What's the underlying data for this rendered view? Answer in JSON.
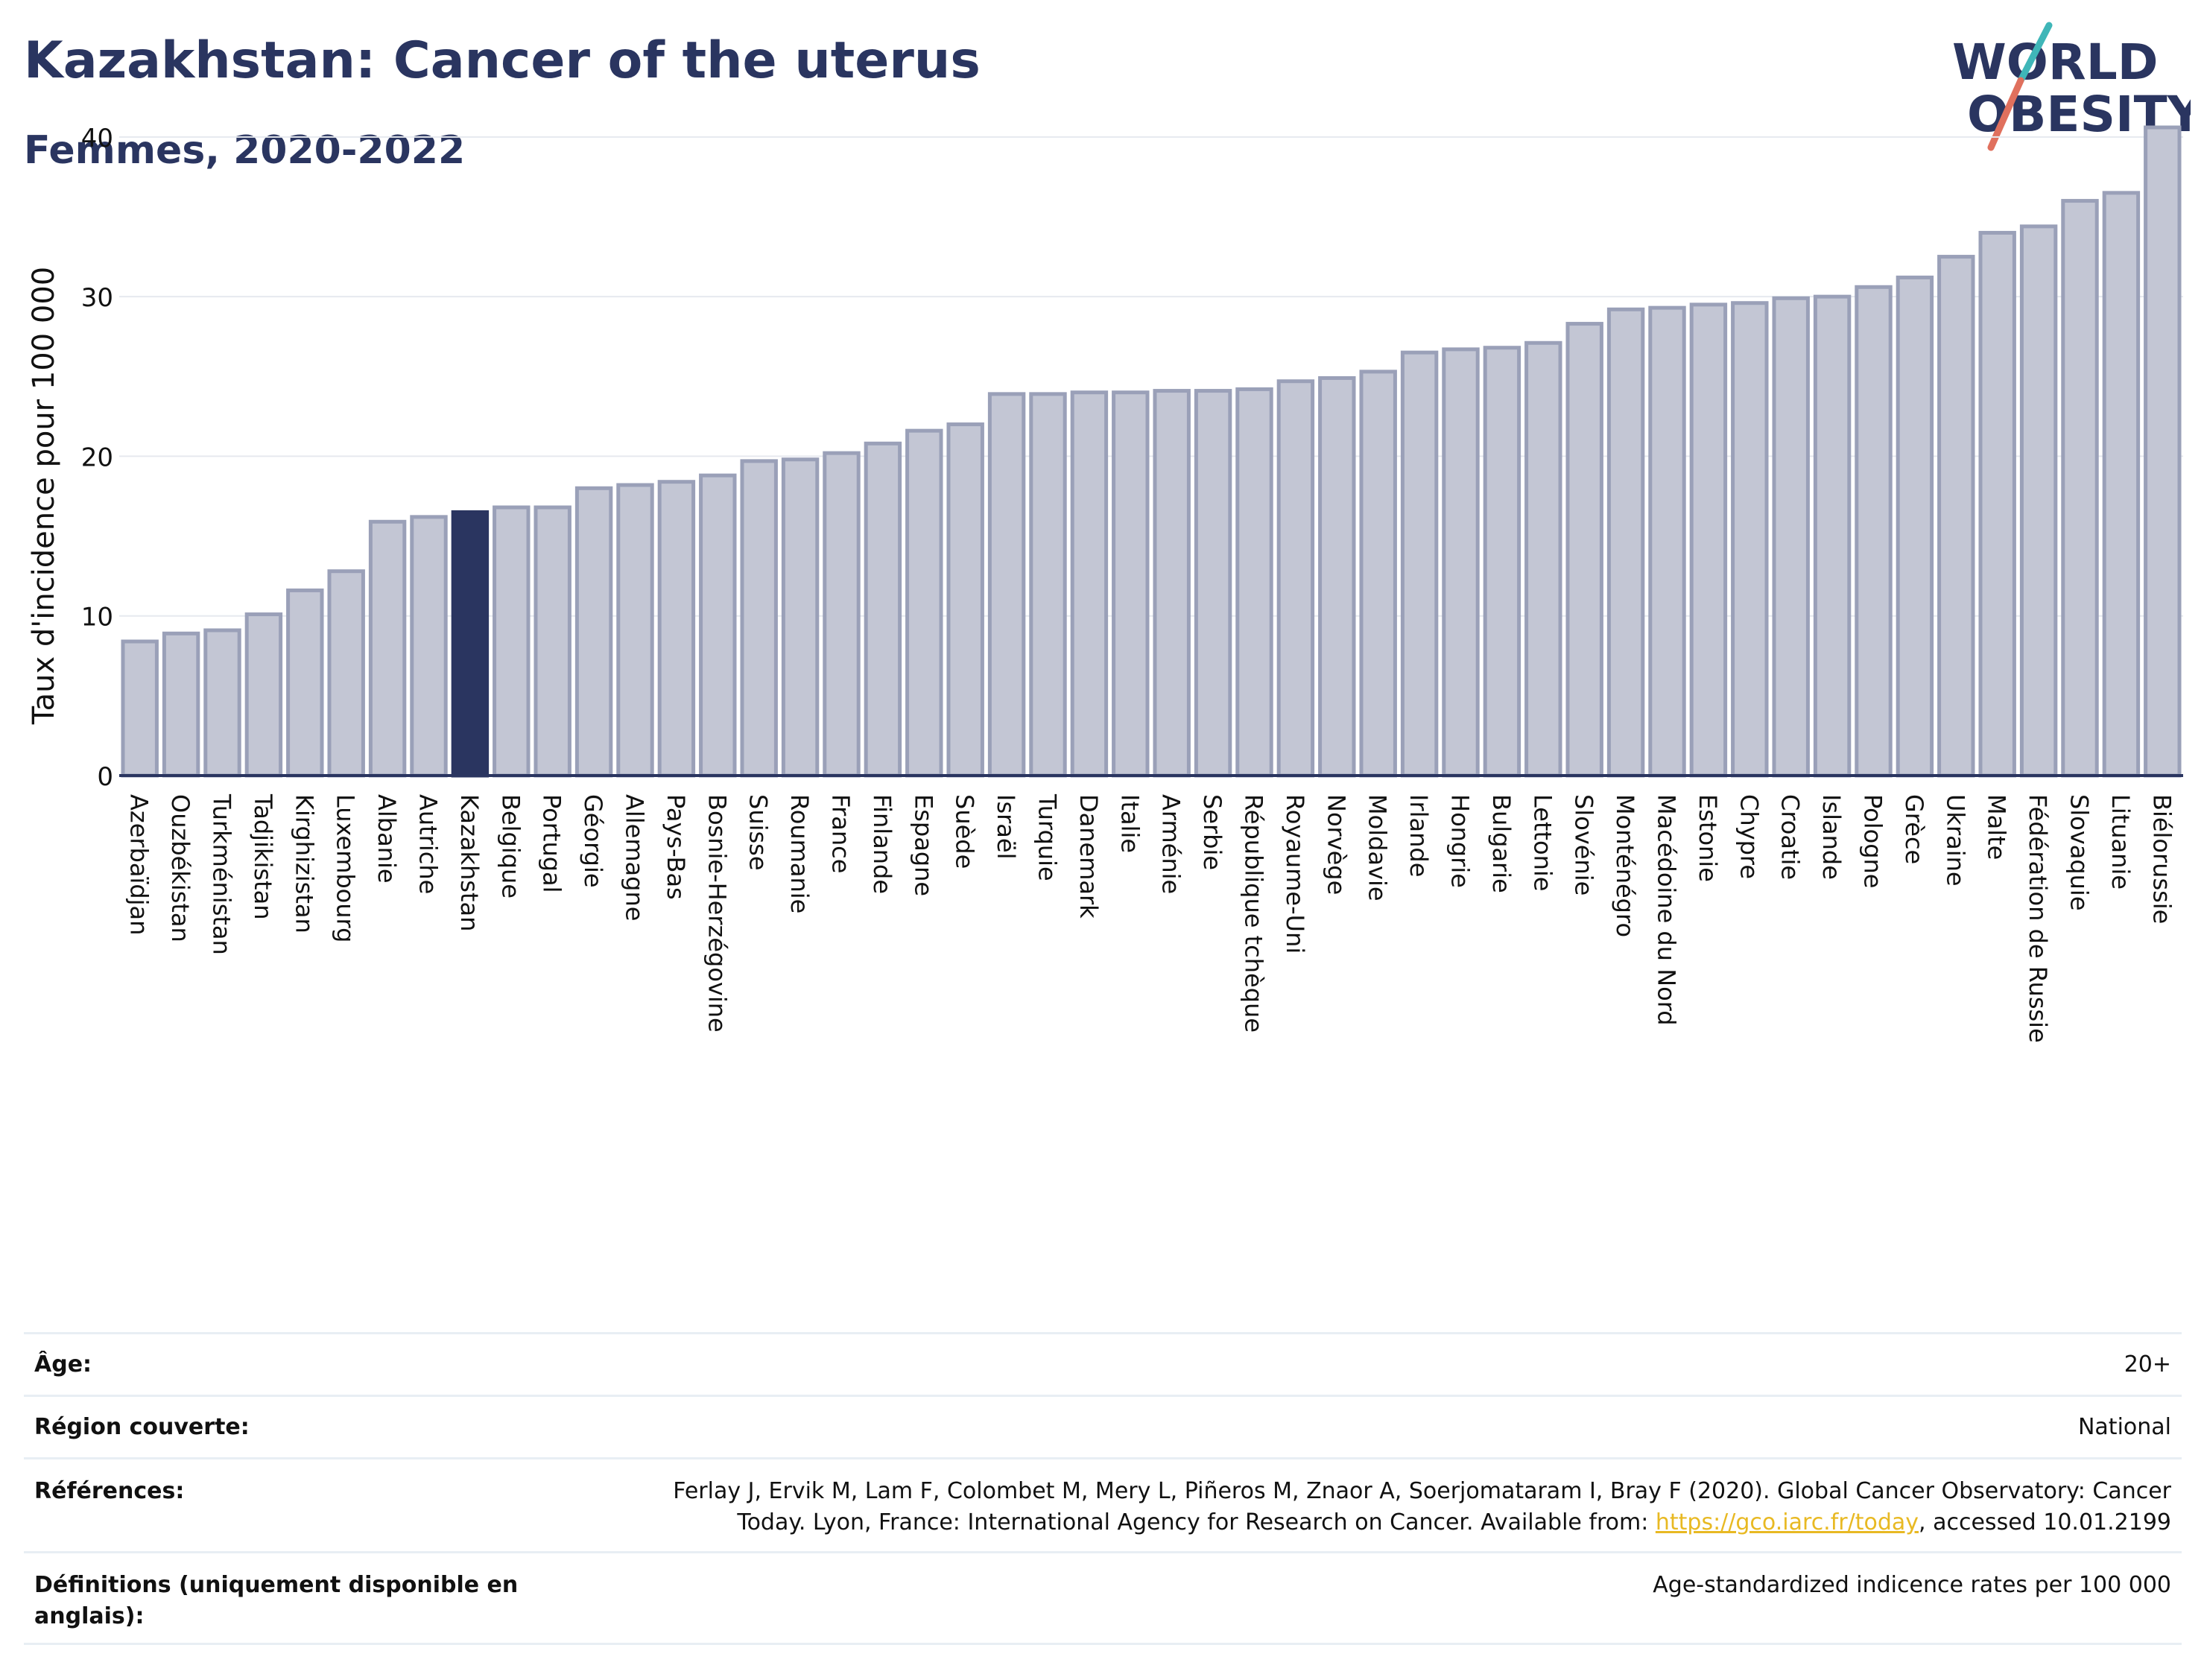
{
  "header": {
    "title": "Kazakhstan: Cancer of the uterus",
    "subtitle": "Femmes, 2020-2022"
  },
  "logo": {
    "line1": "WORLD",
    "line2": "OBESITY"
  },
  "colors": {
    "bar": "#c3c6d4",
    "bar_stroke": "#9aa0b8",
    "highlight": "#2a3560",
    "grid": "#e6e9ef",
    "axis": "#2a3560"
  },
  "chart_data": {
    "type": "bar",
    "ylabel": "Taux d'incidence pour 100 000",
    "ylim": [
      0,
      42
    ],
    "yticks": [
      0,
      10,
      20,
      30,
      40
    ],
    "highlight": "Kazakhstan",
    "grid": true,
    "categories": [
      "Azerbaïdjan",
      "Ouzbékistan",
      "Turkménistan",
      "Tadjikistan",
      "Kirghizistan",
      "Luxembourg",
      "Albanie",
      "Autriche",
      "Kazakhstan",
      "Belgique",
      "Portugal",
      "Géorgie",
      "Allemagne",
      "Pays-Bas",
      "Bosnie-Herzégovine",
      "Suisse",
      "Roumanie",
      "France",
      "Finlande",
      "Espagne",
      "Suède",
      "Israël",
      "Turquie",
      "Danemark",
      "Italie",
      "Arménie",
      "Serbie",
      "République tchèque",
      "Royaume-Uni",
      "Norvège",
      "Moldavie",
      "Irlande",
      "Hongrie",
      "Bulgarie",
      "Lettonie",
      "Slovénie",
      "Monténégro",
      "Macédoine du Nord",
      "Estonie",
      "Chypre",
      "Croatie",
      "Islande",
      "Pologne",
      "Grèce",
      "Ukraine",
      "Malte",
      "Fédération de Russie",
      "Slovaquie",
      "Lituanie",
      "Biélorussie"
    ],
    "values": [
      8.4,
      8.9,
      9.1,
      10.1,
      11.6,
      12.8,
      15.9,
      16.2,
      16.5,
      16.8,
      16.8,
      18.0,
      18.2,
      18.4,
      18.8,
      19.7,
      19.8,
      20.2,
      20.8,
      21.6,
      22.0,
      23.9,
      23.9,
      24.0,
      24.0,
      24.1,
      24.1,
      24.2,
      24.7,
      24.9,
      25.3,
      26.5,
      26.7,
      26.8,
      27.1,
      28.3,
      29.2,
      29.3,
      29.5,
      29.6,
      29.9,
      30.0,
      30.6,
      31.2,
      32.5,
      34.0,
      34.4,
      36.0,
      36.5,
      40.6
    ]
  },
  "info": {
    "age_label": "Âge:",
    "age_value": "20+",
    "region_label": "Région couverte:",
    "region_value": "National",
    "ref_label": "Références:",
    "ref_text_1": "Ferlay J, Ervik M, Lam F, Colombet M, Mery L, Piñeros M, Znaor A, Soerjomataram I, Bray F (2020). Global Cancer Observatory: Cancer",
    "ref_text_2": "Today. Lyon, France: International Agency for Research on Cancer. Available from: ",
    "ref_link": "https://gco.iarc.fr/today",
    "ref_text_3": ", accessed 10.01.2199",
    "def_label": "Définitions (uniquement disponible en anglais):",
    "def_value": "Age-standardized indicence rates per 100 000"
  }
}
